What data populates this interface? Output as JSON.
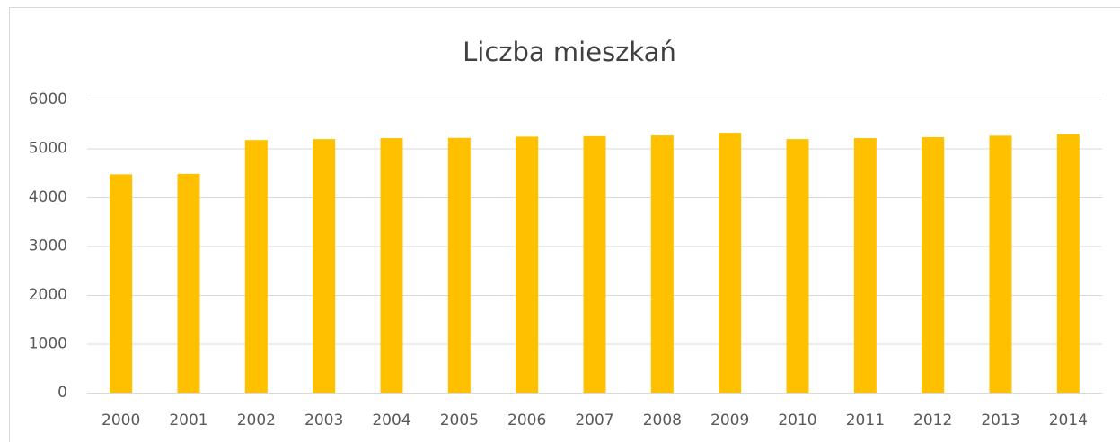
{
  "chart_data": {
    "type": "bar",
    "title": "Liczba mieszkań",
    "categories": [
      "2000",
      "2001",
      "2002",
      "2003",
      "2004",
      "2005",
      "2006",
      "2007",
      "2008",
      "2009",
      "2010",
      "2011",
      "2012",
      "2013",
      "2014"
    ],
    "values": [
      4470,
      4480,
      5170,
      5190,
      5210,
      5215,
      5240,
      5250,
      5265,
      5320,
      5190,
      5210,
      5230,
      5260,
      5290
    ],
    "color": "#ffc000",
    "ylim": [
      0,
      6000
    ],
    "yticks": [
      0,
      1000,
      2000,
      3000,
      4000,
      5000,
      6000
    ],
    "grid": true
  }
}
